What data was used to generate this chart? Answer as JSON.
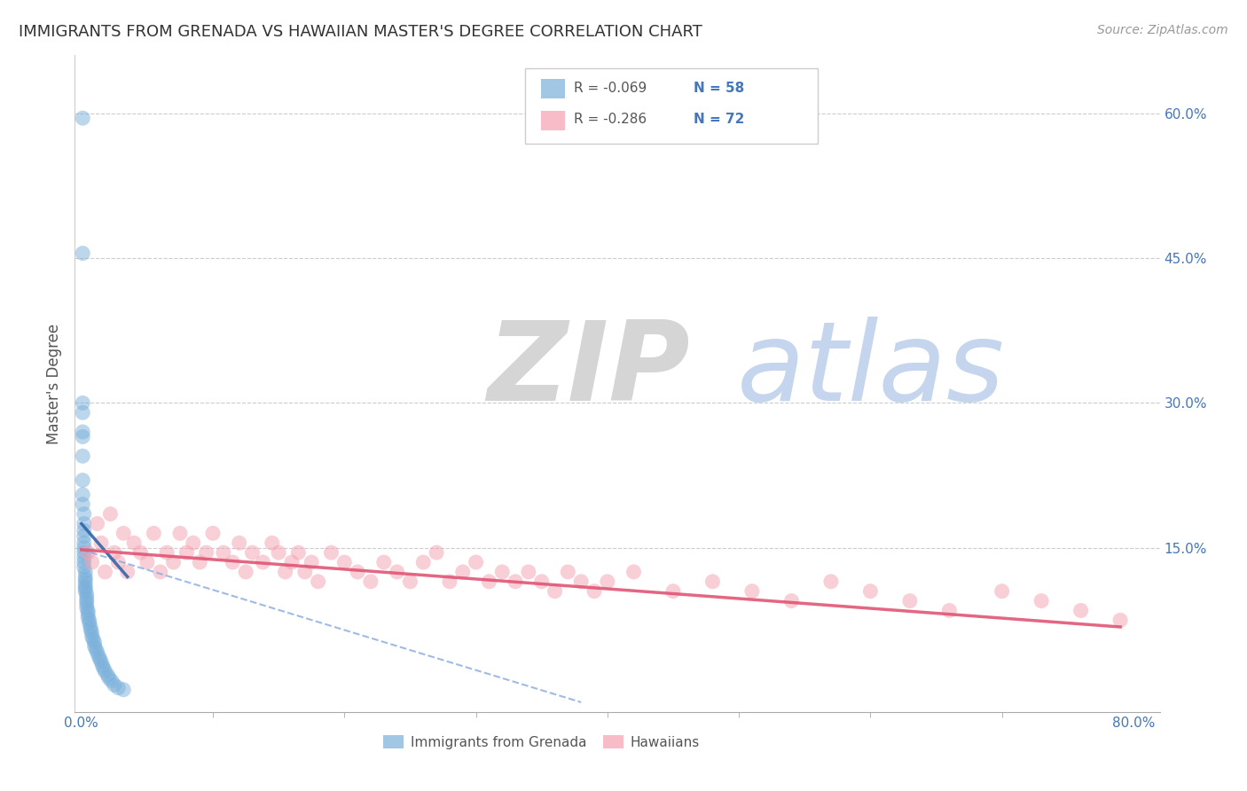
{
  "title": "IMMIGRANTS FROM GRENADA VS HAWAIIAN MASTER'S DEGREE CORRELATION CHART",
  "source": "Source: ZipAtlas.com",
  "ylabel": "Master's Degree",
  "R_blue": -0.069,
  "N_blue": 58,
  "R_pink": -0.286,
  "N_pink": 72,
  "xlim": [
    -0.005,
    0.82
  ],
  "ylim": [
    -0.02,
    0.66
  ],
  "xtick_positions": [
    0.0,
    0.8
  ],
  "xtick_labels": [
    "0.0%",
    "80.0%"
  ],
  "yticks_right": [
    0.15,
    0.3,
    0.45,
    0.6
  ],
  "ytick_right_labels": [
    "15.0%",
    "30.0%",
    "45.0%",
    "60.0%"
  ],
  "grid_color": "#cccccc",
  "blue_color": "#7ab0db",
  "pink_color": "#f5a0b0",
  "blue_line_color": "#3366aa",
  "pink_line_color": "#e05575",
  "dash_line_color": "#88aadd",
  "watermark_zip_color": "#d5d5d5",
  "watermark_atlas_color": "#c5d5ee",
  "background_color": "#ffffff",
  "blue_x": [
    0.001,
    0.001,
    0.001,
    0.001,
    0.001,
    0.001,
    0.001,
    0.001,
    0.001,
    0.001,
    0.002,
    0.002,
    0.002,
    0.002,
    0.002,
    0.002,
    0.002,
    0.002,
    0.002,
    0.002,
    0.003,
    0.003,
    0.003,
    0.003,
    0.003,
    0.003,
    0.003,
    0.004,
    0.004,
    0.004,
    0.004,
    0.004,
    0.005,
    0.005,
    0.005,
    0.006,
    0.006,
    0.007,
    0.007,
    0.008,
    0.008,
    0.009,
    0.01,
    0.01,
    0.011,
    0.012,
    0.013,
    0.014,
    0.015,
    0.016,
    0.017,
    0.018,
    0.02,
    0.021,
    0.023,
    0.025,
    0.028,
    0.032
  ],
  "blue_y": [
    0.595,
    0.455,
    0.3,
    0.29,
    0.27,
    0.265,
    0.245,
    0.22,
    0.205,
    0.195,
    0.185,
    0.175,
    0.168,
    0.162,
    0.155,
    0.15,
    0.145,
    0.14,
    0.135,
    0.13,
    0.125,
    0.12,
    0.117,
    0.114,
    0.11,
    0.108,
    0.105,
    0.102,
    0.098,
    0.095,
    0.092,
    0.088,
    0.085,
    0.082,
    0.078,
    0.075,
    0.072,
    0.068,
    0.065,
    0.062,
    0.058,
    0.055,
    0.052,
    0.048,
    0.045,
    0.042,
    0.038,
    0.035,
    0.032,
    0.028,
    0.025,
    0.022,
    0.018,
    0.015,
    0.012,
    0.008,
    0.005,
    0.003
  ],
  "pink_x": [
    0.005,
    0.008,
    0.012,
    0.015,
    0.018,
    0.022,
    0.025,
    0.028,
    0.032,
    0.035,
    0.04,
    0.045,
    0.05,
    0.055,
    0.06,
    0.065,
    0.07,
    0.075,
    0.08,
    0.085,
    0.09,
    0.095,
    0.1,
    0.108,
    0.115,
    0.12,
    0.125,
    0.13,
    0.138,
    0.145,
    0.15,
    0.155,
    0.16,
    0.165,
    0.17,
    0.175,
    0.18,
    0.19,
    0.2,
    0.21,
    0.22,
    0.23,
    0.24,
    0.25,
    0.26,
    0.27,
    0.28,
    0.29,
    0.3,
    0.31,
    0.32,
    0.33,
    0.34,
    0.35,
    0.36,
    0.37,
    0.38,
    0.39,
    0.4,
    0.42,
    0.45,
    0.48,
    0.51,
    0.54,
    0.57,
    0.6,
    0.63,
    0.66,
    0.7,
    0.73,
    0.76,
    0.79
  ],
  "pink_y": [
    0.145,
    0.135,
    0.175,
    0.155,
    0.125,
    0.185,
    0.145,
    0.135,
    0.165,
    0.125,
    0.155,
    0.145,
    0.135,
    0.165,
    0.125,
    0.145,
    0.135,
    0.165,
    0.145,
    0.155,
    0.135,
    0.145,
    0.165,
    0.145,
    0.135,
    0.155,
    0.125,
    0.145,
    0.135,
    0.155,
    0.145,
    0.125,
    0.135,
    0.145,
    0.125,
    0.135,
    0.115,
    0.145,
    0.135,
    0.125,
    0.115,
    0.135,
    0.125,
    0.115,
    0.135,
    0.145,
    0.115,
    0.125,
    0.135,
    0.115,
    0.125,
    0.115,
    0.125,
    0.115,
    0.105,
    0.125,
    0.115,
    0.105,
    0.115,
    0.125,
    0.105,
    0.115,
    0.105,
    0.095,
    0.115,
    0.105,
    0.095,
    0.085,
    0.105,
    0.095,
    0.085,
    0.075
  ]
}
